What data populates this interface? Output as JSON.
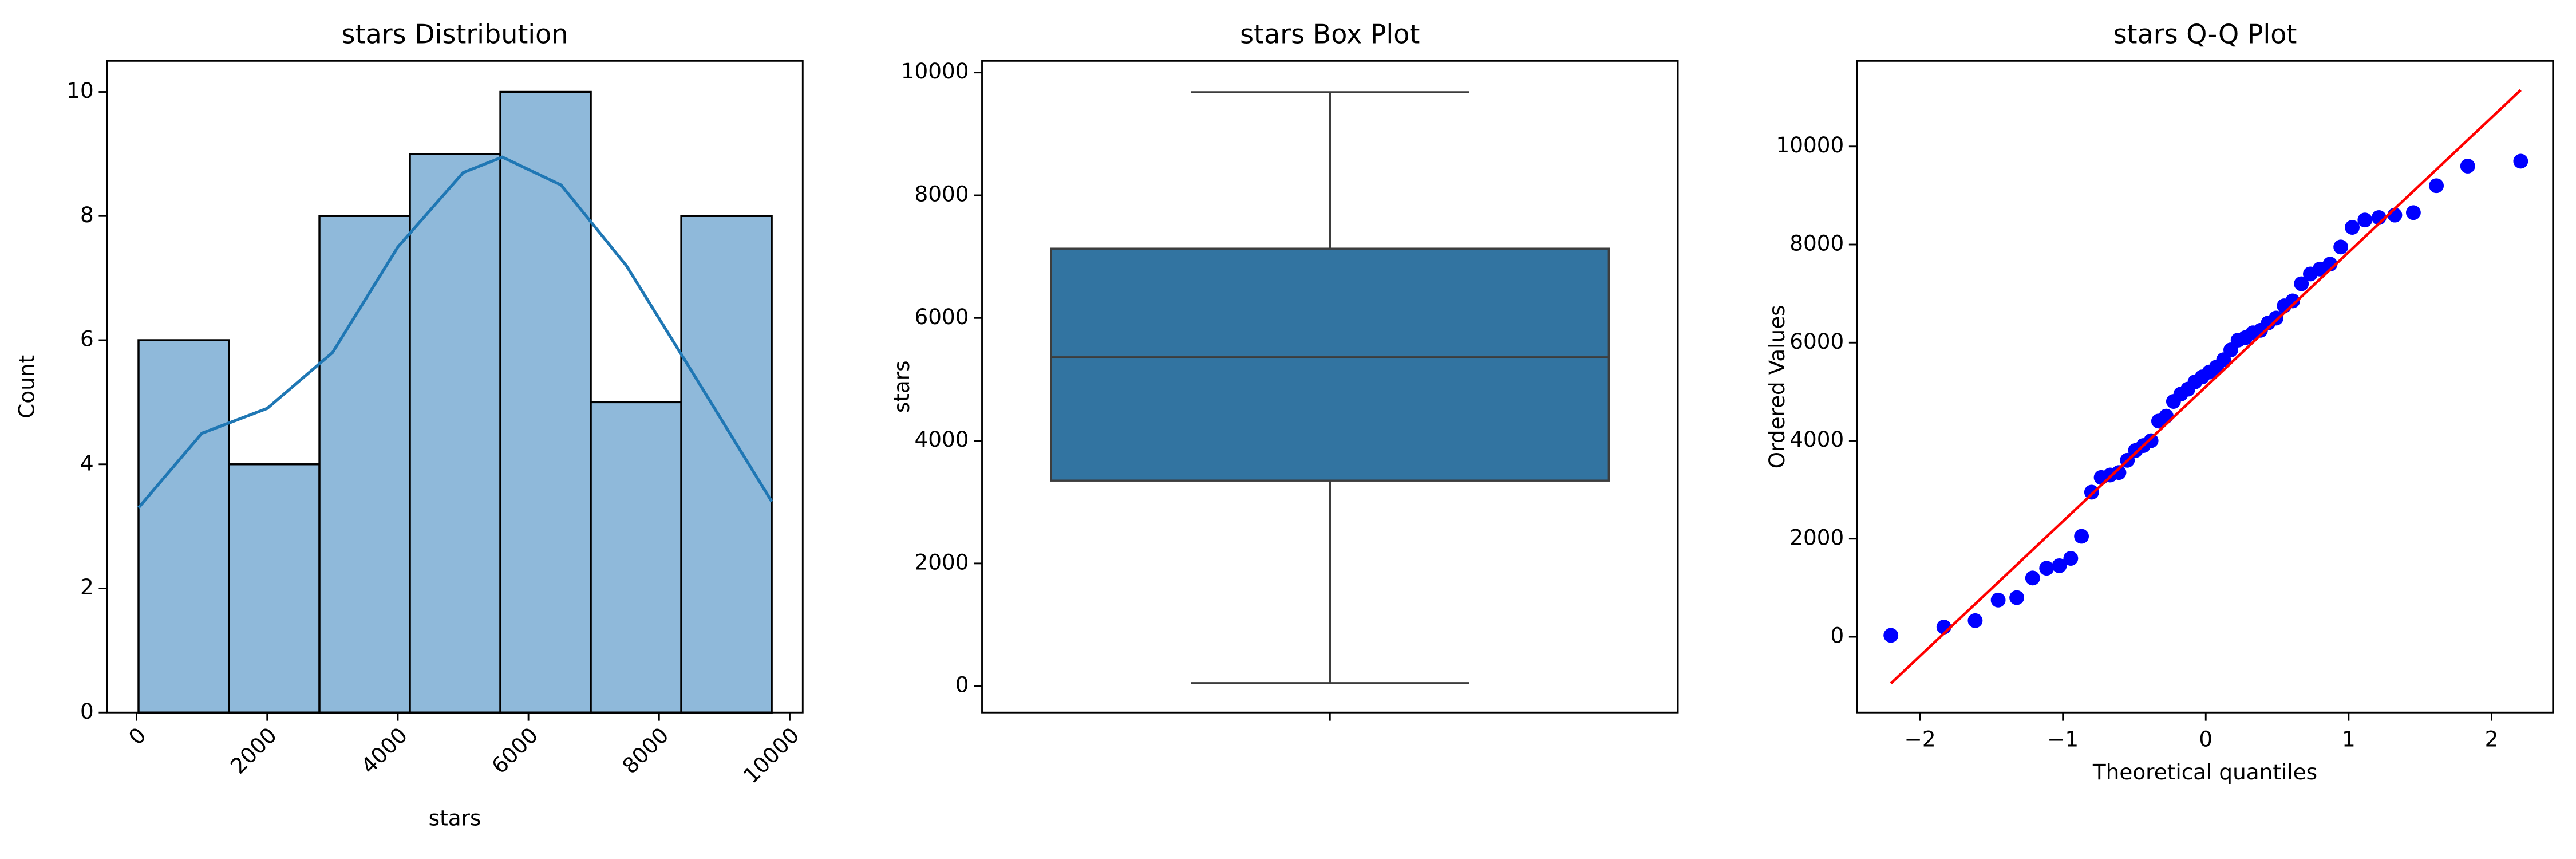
{
  "chart_data": [
    {
      "type": "histogram",
      "title": "stars Distribution",
      "xlabel": "stars",
      "ylabel": "Count",
      "bins": [
        30,
        1415,
        2800,
        4185,
        5570,
        6955,
        8340,
        9725
      ],
      "values": [
        6,
        4,
        8,
        9,
        10,
        5,
        8
      ],
      "color": "#8fb9da",
      "edgecolor": "#000000",
      "kde": {
        "color": "#1f77b4",
        "x": [
          30,
          1000,
          2000,
          3000,
          4000,
          5000,
          5600,
          6500,
          7500,
          8500,
          9725
        ],
        "values": [
          3.3,
          4.5,
          4.9,
          5.8,
          7.5,
          8.7,
          8.95,
          8.5,
          7.2,
          5.5,
          3.4
        ]
      },
      "xlim": [
        -454,
        10200
      ],
      "ylim": [
        0,
        10.5
      ],
      "xticks": [
        0,
        2000,
        4000,
        6000,
        8000,
        10000
      ],
      "yticks": [
        0,
        2,
        4,
        6,
        8,
        10
      ]
    },
    {
      "type": "box",
      "title": "stars Box Plot",
      "ylabel": "stars",
      "color": "#3274a1",
      "box": {
        "whislo": 50,
        "q1": 3350,
        "med": 5360,
        "q3": 7130,
        "whishi": 9680
      },
      "ylim": [
        -430,
        10190
      ],
      "yticks": [
        0,
        2000,
        4000,
        6000,
        8000,
        10000
      ]
    },
    {
      "type": "qq",
      "title": "stars Q-Q Plot",
      "xlabel": "Theoretical quantiles",
      "ylabel": "Ordered Values",
      "color": "#0000ff",
      "x": [
        -2.204,
        -1.833,
        -1.614,
        -1.453,
        -1.323,
        -1.212,
        -1.114,
        -1.025,
        -0.945,
        -0.87,
        -0.799,
        -0.732,
        -0.669,
        -0.608,
        -0.549,
        -0.492,
        -0.437,
        -0.383,
        -0.33,
        -0.277,
        -0.226,
        -0.175,
        -0.125,
        -0.075,
        -0.025,
        0.025,
        0.075,
        0.125,
        0.175,
        0.226,
        0.277,
        0.33,
        0.383,
        0.437,
        0.492,
        0.549,
        0.608,
        0.669,
        0.732,
        0.799,
        0.87,
        0.945,
        1.025,
        1.114,
        1.212,
        1.323,
        1.453,
        1.614,
        1.833,
        2.204
      ],
      "values": [
        30,
        200,
        330,
        750,
        800,
        1200,
        1400,
        1450,
        1600,
        2050,
        2950,
        3250,
        3300,
        3350,
        3600,
        3800,
        3900,
        4000,
        4400,
        4500,
        4800,
        4950,
        5050,
        5200,
        5300,
        5400,
        5500,
        5650,
        5850,
        6050,
        6100,
        6200,
        6250,
        6400,
        6500,
        6750,
        6850,
        7200,
        7400,
        7500,
        7600,
        7950,
        8350,
        8500,
        8550,
        8600,
        8650,
        9200,
        9600,
        9700
      ],
      "fit_line": {
        "color": "#ff0000",
        "x": [
          -2.204,
          2.204
        ],
        "values": [
          -950,
          11150
        ]
      },
      "xlim": [
        -2.44,
        2.43
      ],
      "ylim": [
        -1544,
        11745
      ],
      "xticks": [
        {
          "value": -2,
          "label": "−2"
        },
        {
          "value": -1,
          "label": "−1"
        },
        0,
        1,
        2
      ],
      "yticks": [
        0,
        2000,
        4000,
        6000,
        8000,
        10000
      ]
    }
  ]
}
